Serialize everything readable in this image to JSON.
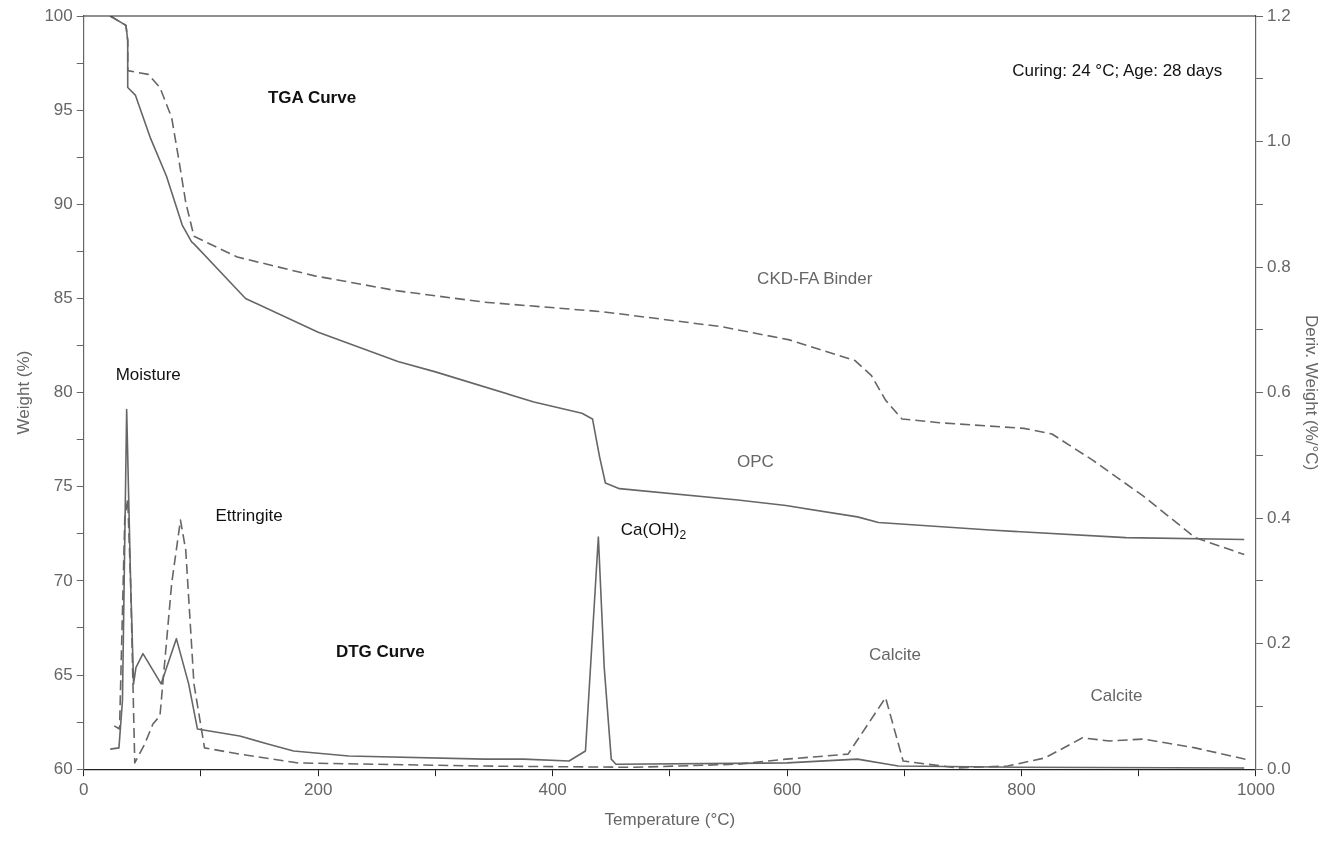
{
  "chart_data": {
    "type": "line",
    "xlabel": "Temperature (°C)",
    "ylabel": "Weight (%)",
    "y2label": "Deriv. Weight (%/°C)",
    "xlim": [
      0,
      1000
    ],
    "xticks": [
      0,
      {
        "value": 100,
        "label": null
      },
      200,
      {
        "value": 300,
        "label": null
      },
      400,
      {
        "value": 500,
        "label": null
      },
      600,
      {
        "value": 700,
        "label": null
      },
      800,
      {
        "value": 900,
        "label": null
      },
      1000
    ],
    "ylim": [
      60,
      100
    ],
    "yticks": [
      60,
      {
        "value": 62.5,
        "label": null
      },
      65,
      {
        "value": 67.5,
        "label": null
      },
      70,
      {
        "value": 72.5,
        "label": null
      },
      75,
      {
        "value": 77.5,
        "label": null
      },
      80,
      {
        "value": 82.5,
        "label": null
      },
      85,
      {
        "value": 87.5,
        "label": null
      },
      90,
      {
        "value": 92.5,
        "label": null
      },
      95,
      {
        "value": 97.5,
        "label": null
      },
      100
    ],
    "y2lim": [
      0,
      1.2
    ],
    "y2ticks": [
      {
        "value": 0,
        "label": "0.0"
      },
      {
        "value": 0.1,
        "label": null
      },
      0.2,
      {
        "value": 0.3,
        "label": null
      },
      0.4,
      {
        "value": 0.5,
        "label": null
      },
      0.6,
      {
        "value": 0.7,
        "label": null
      },
      0.8,
      {
        "value": 0.9,
        "label": null
      },
      {
        "value": 1,
        "label": "1.0"
      },
      {
        "value": 1.1,
        "label": null
      },
      1.2
    ],
    "grid": false,
    "legend": false,
    "marker": "none",
    "series": [
      {
        "color": "#666666",
        "line_style": "solid",
        "x": [
          22.6,
          36,
          37.5,
          37.5,
          44,
          57,
          70.5,
          84,
          92,
          94,
          138,
          200,
          268,
          300,
          384,
          425,
          434,
          440,
          445,
          457,
          558,
          599,
          660,
          678,
          773,
          889,
          990
        ],
        "values": [
          100,
          99.5,
          98.7,
          96.2,
          95.8,
          93.5,
          91.5,
          88.9,
          88.0,
          87.9,
          85.0,
          83.2,
          81.65,
          81.1,
          79.5,
          78.9,
          78.6,
          76.6,
          75.2,
          74.9,
          74.3,
          74.0,
          73.4,
          73.1,
          72.7,
          72.3,
          72.2
        ]
      },
      {
        "color": "#666666",
        "line_style": "dashed",
        "x": [
          22.6,
          36,
          37.5,
          37.5,
          55,
          65,
          75,
          81,
          87,
          94,
          131,
          197,
          268,
          342,
          442,
          544,
          602,
          658,
          672,
          684,
          698,
          730,
          802,
          826,
          861,
          904,
          948,
          990
        ],
        "values": [
          100,
          99.5,
          98.7,
          97.1,
          96.9,
          96.2,
          94.6,
          92.4,
          90.1,
          88.3,
          87.2,
          86.2,
          85.4,
          84.8,
          84.3,
          83.5,
          82.8,
          81.7,
          80.9,
          79.6,
          78.6,
          78.4,
          78.1,
          77.8,
          76.4,
          74.5,
          72.3,
          71.4
        ]
      },
      {
        "color": "#666666",
        "line_style": "solid",
        "axis": "y2",
        "x": [
          22.6,
          30,
          33,
          36.6,
          40,
          42.5,
          44.5,
          50.5,
          66,
          79,
          89.5,
          97,
          133,
          157,
          179,
          226,
          342,
          375,
          414,
          428,
          439,
          444,
          450,
          454,
          600,
          660,
          695,
          800,
          990
        ],
        "values": [
          0.032,
          0.034,
          0.109,
          0.573,
          0.296,
          0.136,
          0.162,
          0.184,
          0.136,
          0.208,
          0.136,
          0.064,
          0.053,
          0.04,
          0.029,
          0.021,
          0.016,
          0.016,
          0.013,
          0.029,
          0.37,
          0.162,
          0.016,
          0.008,
          0.01,
          0.016,
          0.005,
          0.003,
          0.002
        ]
      },
      {
        "color": "#666666",
        "line_style": "dashed",
        "axis": "y2",
        "x": [
          26,
          30.5,
          35,
          37.5,
          40,
          43.5,
          52,
          59,
          65,
          75,
          82.5,
          87,
          94,
          103,
          133,
          183,
          342,
          470,
          558,
          599,
          652,
          684,
          699,
          745,
          788,
          820,
          852,
          875,
          904,
          948,
          991
        ],
        "values": [
          0.069,
          0.064,
          0.4,
          0.43,
          0.296,
          0.01,
          0.04,
          0.072,
          0.085,
          0.296,
          0.397,
          0.349,
          0.136,
          0.034,
          0.024,
          0.01,
          0.005,
          0.003,
          0.008,
          0.016,
          0.024,
          0.114,
          0.013,
          0.002,
          0.005,
          0.018,
          0.05,
          0.045,
          0.048,
          0.034,
          0.016
        ]
      }
    ],
    "annotations": [
      "TGA Curve",
      "DTG Curve",
      "Curing: 24 °C; Age: 28 days",
      "Moisture",
      "Ettringite",
      "Ca(OH)$_{2}$",
      "CKD-FA Binder",
      "OPC",
      "Calcite",
      "Calcite"
    ]
  }
}
